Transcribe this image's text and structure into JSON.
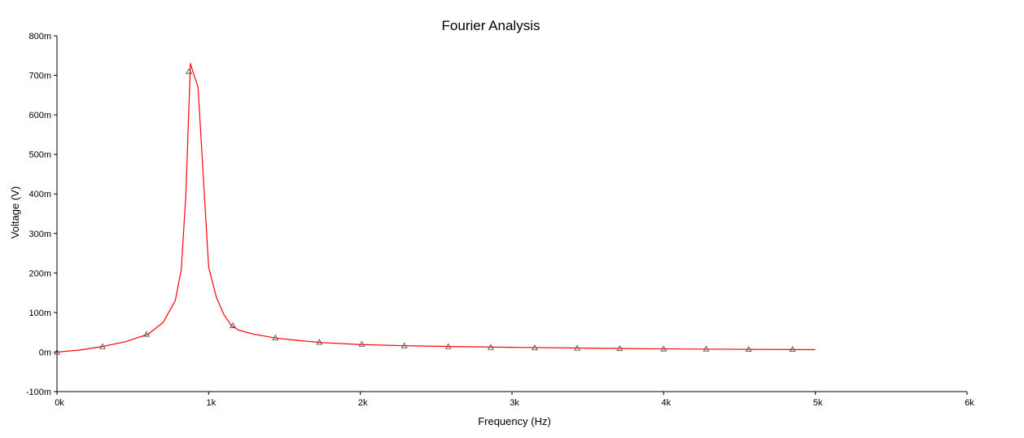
{
  "chart_data": {
    "type": "line",
    "title": "Fourier Analysis",
    "xlabel": "Frequency (Hz)",
    "ylabel": "Voltage (V)",
    "xlim": [
      0,
      6000
    ],
    "ylim": [
      -100,
      800
    ],
    "x_ticks": [
      {
        "value": 0,
        "label": "0k"
      },
      {
        "value": 1000,
        "label": "1k"
      },
      {
        "value": 2000,
        "label": "2k"
      },
      {
        "value": 3000,
        "label": "3k"
      },
      {
        "value": 4000,
        "label": "4k"
      },
      {
        "value": 5000,
        "label": "5k"
      },
      {
        "value": 6000,
        "label": "6k"
      }
    ],
    "y_ticks": [
      {
        "value": -100,
        "label": "-100m"
      },
      {
        "value": 0,
        "label": "0m"
      },
      {
        "value": 100,
        "label": "100m"
      },
      {
        "value": 200,
        "label": "200m"
      },
      {
        "value": 300,
        "label": "300m"
      },
      {
        "value": 400,
        "label": "400m"
      },
      {
        "value": 500,
        "label": "500m"
      },
      {
        "value": 600,
        "label": "600m"
      },
      {
        "value": 700,
        "label": "700m"
      },
      {
        "value": 800,
        "label": "800m"
      }
    ],
    "grid": false,
    "series": [
      {
        "color": "#ff0000",
        "marker": "triangle",
        "marker_color": "#555555",
        "x": [
          0,
          150,
          300,
          450,
          600,
          700,
          780,
          820,
          850,
          880,
          900,
          930,
          970,
          1000,
          1050,
          1100,
          1150,
          1200,
          1300,
          1450,
          1600,
          1750,
          2000,
          2300,
          2600,
          3000,
          3500,
          4000,
          4500,
          5000
        ],
        "y": [
          0,
          5,
          14,
          26,
          45,
          75,
          130,
          210,
          400,
          730,
          705,
          670,
          410,
          215,
          140,
          95,
          67,
          55,
          45,
          35,
          29,
          24,
          19,
          16,
          14,
          12,
          10,
          8,
          7,
          6
        ],
        "marker_x": [
          0,
          300,
          590,
          870,
          1160,
          1440,
          1730,
          2010,
          2290,
          2580,
          2860,
          3150,
          3430,
          3710,
          4000,
          4280,
          4560,
          4850
        ],
        "marker_y": [
          0,
          14,
          45,
          710,
          67,
          36,
          25,
          20,
          16,
          14,
          12,
          11,
          10,
          9,
          8,
          8,
          7,
          7
        ]
      }
    ]
  }
}
